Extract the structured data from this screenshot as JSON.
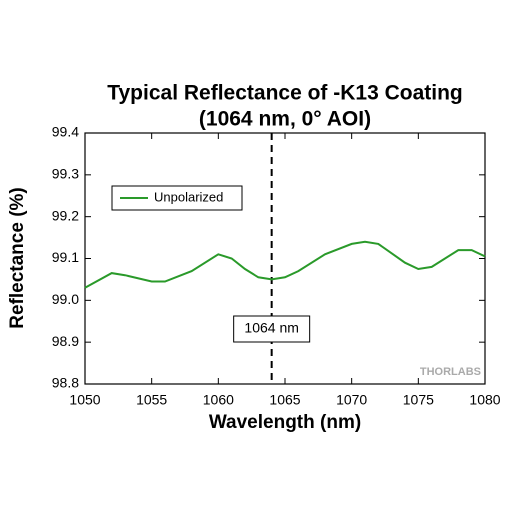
{
  "chart_data": {
    "type": "line",
    "title": [
      "Typical Reflectance of -K13 Coating",
      "(1064 nm, 0° AOI)"
    ],
    "x_label": "Wavelength (nm)",
    "y_label": "Reflectance (%)",
    "x": [
      1050,
      1052,
      1053,
      1055,
      1056,
      1058,
      1060,
      1061,
      1062,
      1063,
      1064,
      1065,
      1066,
      1068,
      1070,
      1071,
      1072,
      1074,
      1075,
      1076,
      1078,
      1079,
      1080
    ],
    "series": [
      {
        "name": "Unpolarized",
        "color": "#2a9a2a",
        "values": [
          99.03,
          99.065,
          99.06,
          99.045,
          99.045,
          99.07,
          99.11,
          99.1,
          99.075,
          99.055,
          99.05,
          99.055,
          99.07,
          99.11,
          99.135,
          99.14,
          99.135,
          99.09,
          99.075,
          99.08,
          99.12,
          99.12,
          99.105
        ]
      }
    ],
    "xlim": [
      1050,
      1080
    ],
    "xticks": [
      1050,
      1055,
      1060,
      1065,
      1070,
      1075,
      1080
    ],
    "ylim": [
      98.8,
      99.4
    ],
    "yticks": [
      98.8,
      98.9,
      {
        "value": 99,
        "label": "99.0"
      },
      99.1,
      99.2,
      99.3,
      99.4
    ],
    "reference_line": {
      "x": 1064,
      "label": "1064 nm"
    },
    "watermark": "THORLABS",
    "legend": "upper left"
  }
}
